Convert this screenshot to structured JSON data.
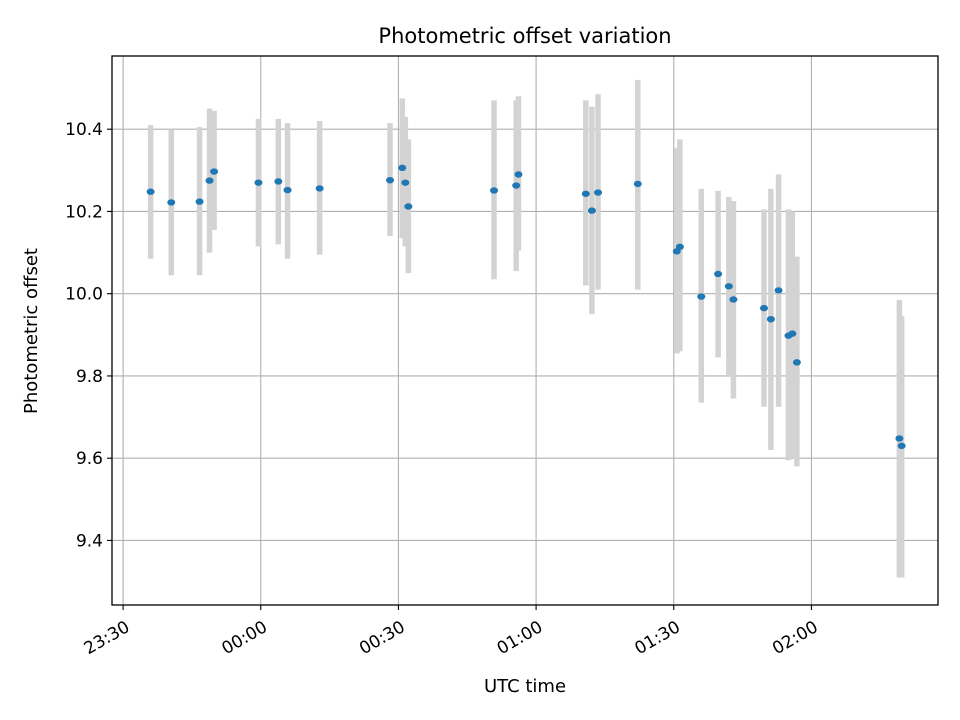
{
  "chart_data": {
    "type": "scatter",
    "title": "Photometric offset variation",
    "xlabel": "UTC time",
    "ylabel": "Photometric offset",
    "x_tick_labels": [
      "23:30",
      "00:00",
      "00:30",
      "01:00",
      "01:30",
      "02:00"
    ],
    "y_tick_labels": [
      "9.4",
      "9.6",
      "9.8",
      "10.0",
      "10.2",
      "10.4"
    ],
    "y_ticks": [
      9.4,
      9.6,
      9.8,
      10.0,
      10.2,
      10.4
    ],
    "xlim": [
      "2000-01-01T23:27:35",
      "2000-01-02T02:27:35"
    ],
    "ylim": [
      9.243,
      10.578
    ],
    "grid": true,
    "colors": {
      "point": "#1f77b4",
      "errorbar": "#d3d3d3",
      "grid": "#b0b0b0",
      "axes": "#000000"
    },
    "series": [
      {
        "points": [
          {
            "x": "2000-01-01T23:36:00",
            "y": 10.248,
            "ylow": 10.085,
            "yhigh": 10.41
          },
          {
            "x": "2000-01-01T23:40:30",
            "y": 10.222,
            "ylow": 10.045,
            "yhigh": 10.4
          },
          {
            "x": "2000-01-01T23:46:40",
            "y": 10.224,
            "ylow": 10.045,
            "yhigh": 10.405
          },
          {
            "x": "2000-01-01T23:48:50",
            "y": 10.275,
            "ylow": 10.1,
            "yhigh": 10.45
          },
          {
            "x": "2000-01-01T23:49:50",
            "y": 10.297,
            "ylow": 10.155,
            "yhigh": 10.445
          },
          {
            "x": "2000-01-01T23:59:30",
            "y": 10.27,
            "ylow": 10.115,
            "yhigh": 10.425
          },
          {
            "x": "2000-01-02T00:03:50",
            "y": 10.273,
            "ylow": 10.12,
            "yhigh": 10.425
          },
          {
            "x": "2000-01-02T00:05:50",
            "y": 10.252,
            "ylow": 10.085,
            "yhigh": 10.415
          },
          {
            "x": "2000-01-02T00:12:50",
            "y": 10.256,
            "ylow": 10.095,
            "yhigh": 10.42
          },
          {
            "x": "2000-01-02T00:28:10",
            "y": 10.276,
            "ylow": 10.14,
            "yhigh": 10.415
          },
          {
            "x": "2000-01-02T00:30:50",
            "y": 10.306,
            "ylow": 10.135,
            "yhigh": 10.475
          },
          {
            "x": "2000-01-02T00:31:30",
            "y": 10.27,
            "ylow": 10.115,
            "yhigh": 10.43
          },
          {
            "x": "2000-01-02T00:32:10",
            "y": 10.212,
            "ylow": 10.05,
            "yhigh": 10.375
          },
          {
            "x": "2000-01-02T00:50:50",
            "y": 10.251,
            "ylow": 10.035,
            "yhigh": 10.47
          },
          {
            "x": "2000-01-02T00:55:40",
            "y": 10.263,
            "ylow": 10.055,
            "yhigh": 10.47
          },
          {
            "x": "2000-01-02T00:56:10",
            "y": 10.29,
            "ylow": 10.105,
            "yhigh": 10.48
          },
          {
            "x": "2000-01-02T01:10:50",
            "y": 10.243,
            "ylow": 10.02,
            "yhigh": 10.47
          },
          {
            "x": "2000-01-02T01:12:10",
            "y": 10.202,
            "ylow": 9.95,
            "yhigh": 10.455
          },
          {
            "x": "2000-01-02T01:13:30",
            "y": 10.246,
            "ylow": 10.01,
            "yhigh": 10.485
          },
          {
            "x": "2000-01-02T01:22:10",
            "y": 10.267,
            "ylow": 10.01,
            "yhigh": 10.52
          },
          {
            "x": "2000-01-02T01:30:40",
            "y": 10.103,
            "ylow": 9.855,
            "yhigh": 10.355
          },
          {
            "x": "2000-01-02T01:31:20",
            "y": 10.114,
            "ylow": 9.86,
            "yhigh": 10.375
          },
          {
            "x": "2000-01-02T01:36:00",
            "y": 9.993,
            "ylow": 9.735,
            "yhigh": 10.255
          },
          {
            "x": "2000-01-02T01:39:40",
            "y": 10.048,
            "ylow": 9.845,
            "yhigh": 10.25
          },
          {
            "x": "2000-01-02T01:42:00",
            "y": 10.018,
            "ylow": 9.8,
            "yhigh": 10.235
          },
          {
            "x": "2000-01-02T01:43:00",
            "y": 9.986,
            "ylow": 9.745,
            "yhigh": 10.225
          },
          {
            "x": "2000-01-02T01:49:40",
            "y": 9.965,
            "ylow": 9.725,
            "yhigh": 10.205
          },
          {
            "x": "2000-01-02T01:51:10",
            "y": 9.938,
            "ylow": 9.62,
            "yhigh": 10.255
          },
          {
            "x": "2000-01-02T01:52:50",
            "y": 10.008,
            "ylow": 9.725,
            "yhigh": 10.29
          },
          {
            "x": "2000-01-02T01:55:00",
            "y": 9.898,
            "ylow": 9.595,
            "yhigh": 10.205
          },
          {
            "x": "2000-01-02T01:55:50",
            "y": 9.903,
            "ylow": 9.6,
            "yhigh": 10.2
          },
          {
            "x": "2000-01-02T01:56:50",
            "y": 9.833,
            "ylow": 9.58,
            "yhigh": 10.09
          },
          {
            "x": "2000-01-02T02:19:10",
            "y": 9.648,
            "ylow": 9.31,
            "yhigh": 9.985
          },
          {
            "x": "2000-01-02T02:19:40",
            "y": 9.63,
            "ylow": 9.31,
            "yhigh": 9.945
          }
        ]
      }
    ]
  }
}
